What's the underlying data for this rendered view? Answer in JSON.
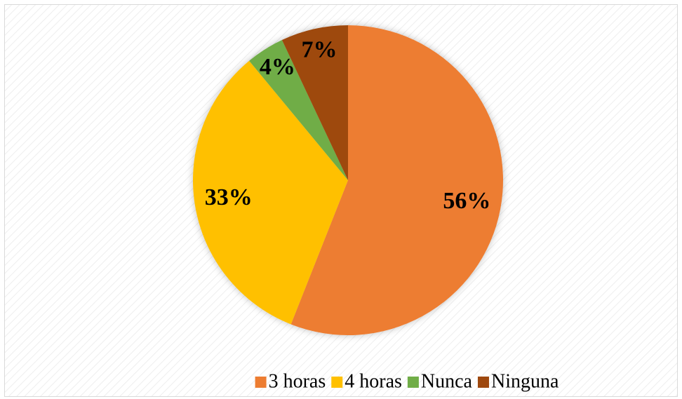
{
  "chart_data": {
    "type": "pie",
    "categories": [
      "3 horas",
      "4 horas",
      "Nunca",
      "Ninguna"
    ],
    "values": [
      56,
      33,
      4,
      7
    ],
    "value_labels": [
      "56%",
      "33%",
      "4%",
      "7%"
    ],
    "colors": [
      "#ED7D31",
      "#FFC000",
      "#70AD47",
      "#9E480E"
    ],
    "legend": "bottom"
  }
}
